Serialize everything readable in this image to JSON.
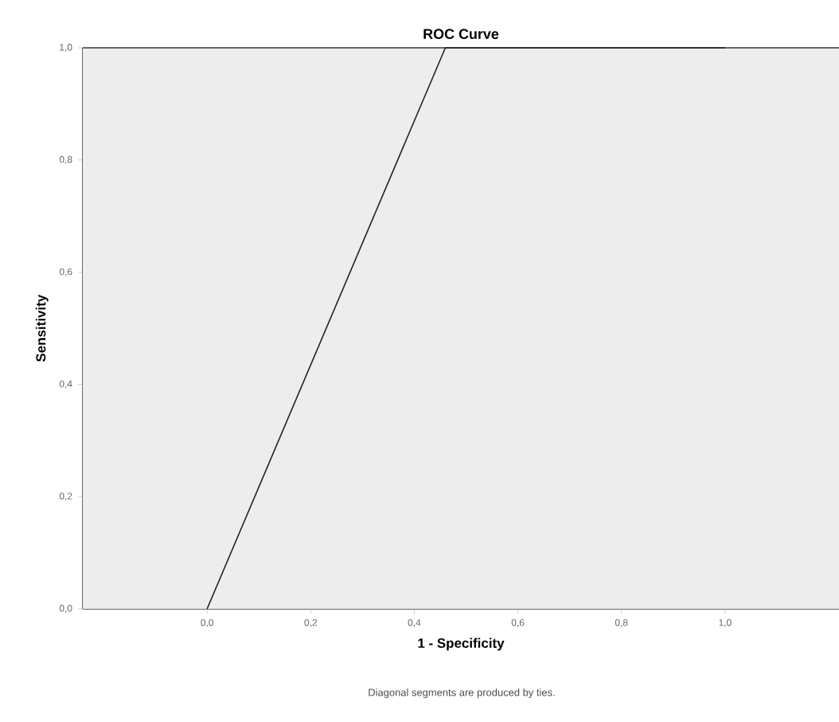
{
  "chart_data": {
    "type": "line",
    "title": "ROC Curve",
    "xlabel": "1 - Specificity",
    "ylabel": "Sensitivity",
    "annotations": [
      "Diagonal segments are produced by ties."
    ],
    "x": [
      0,
      0.46,
      1
    ],
    "series": [
      {
        "color": "#222222",
        "values": [
          0,
          1,
          1
        ]
      }
    ],
    "xlim": [
      -0.24,
      1.22
    ],
    "ylim": [
      0,
      1
    ],
    "xticks": [
      {
        "value": 0,
        "label": "0,0"
      },
      {
        "value": 0.2,
        "label": "0,2"
      },
      {
        "value": 0.4,
        "label": "0,4"
      },
      {
        "value": 0.6,
        "label": "0,6"
      },
      {
        "value": 0.8,
        "label": "0,8"
      },
      {
        "value": 1,
        "label": "1,0"
      }
    ],
    "yticks": [
      {
        "value": 0,
        "label": "0,0"
      },
      {
        "value": 0.2,
        "label": "0,2"
      },
      {
        "value": 0.4,
        "label": "0,4"
      },
      {
        "value": 0.6,
        "label": "0,6"
      },
      {
        "value": 0.8,
        "label": "0,8"
      },
      {
        "value": 1,
        "label": "1,0"
      }
    ],
    "marker": "none",
    "line_style": "solid"
  }
}
